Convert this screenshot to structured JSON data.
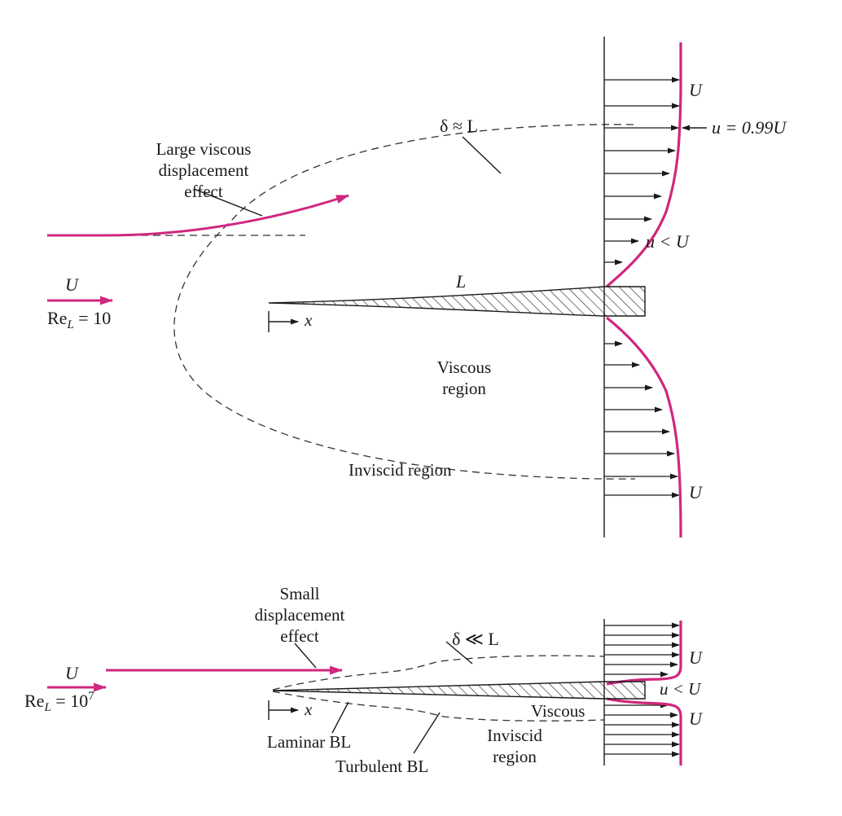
{
  "colors": {
    "accent": "#d0277f",
    "ink": "#1a1a1a",
    "hatch_fill": "#ffffff"
  },
  "top": {
    "delta_label": "δ ≈ L",
    "large_viscous_lines": [
      "Large viscous",
      "displacement",
      "effect"
    ],
    "u_free_top": "U",
    "u_099_label": "u = 0.99U",
    "u_less_label": "u < U",
    "plate_length_label": "L",
    "stream_label": "U",
    "re_prefix": "Re",
    "re_sub": "L",
    "re_value": " = 10",
    "x_label": "x",
    "viscous_region_lines": [
      "Viscous",
      "region"
    ],
    "inviscid_region_label": "Inviscid region",
    "u_free_bottom": "U"
  },
  "bottom": {
    "small_disp_lines": [
      "Small",
      "displacement",
      "effect"
    ],
    "delta_label": "δ ≪ L",
    "u_top": "U",
    "u_less_label": "u < U",
    "u_bottom": "U",
    "stream_label": "U",
    "re_prefix": "Re",
    "re_sub": "L",
    "re_value": " = 10",
    "re_exp": "7",
    "x_label": "x",
    "viscous_label": "Viscous",
    "laminar_label": "Laminar BL",
    "turbulent_label": "Turbulent BL",
    "inviscid_lines": [
      "Inviscid",
      "region"
    ]
  }
}
